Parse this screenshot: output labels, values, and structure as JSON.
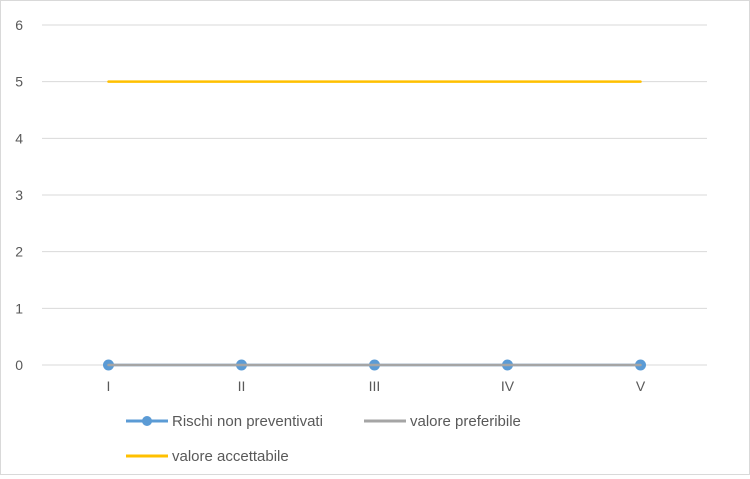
{
  "chart_data": {
    "type": "line",
    "categories": [
      "I",
      "II",
      "III",
      "IV",
      "V"
    ],
    "ylim": [
      0,
      6
    ],
    "yticks": [
      0,
      1,
      2,
      3,
      4,
      5,
      6
    ],
    "grid": true,
    "legend_position": "bottom",
    "series": [
      {
        "name": "Rischi non preventivati",
        "values": [
          0,
          0,
          0,
          0,
          0
        ],
        "color": "#5b9bd5",
        "markers": true
      },
      {
        "name": "valore preferibile",
        "values": [
          0,
          0,
          0,
          0,
          0
        ],
        "color": "#a5a5a5",
        "markers": false
      },
      {
        "name": "valore accettabile",
        "values": [
          5,
          5,
          5,
          5,
          5
        ],
        "color": "#ffc000",
        "markers": false
      }
    ]
  }
}
